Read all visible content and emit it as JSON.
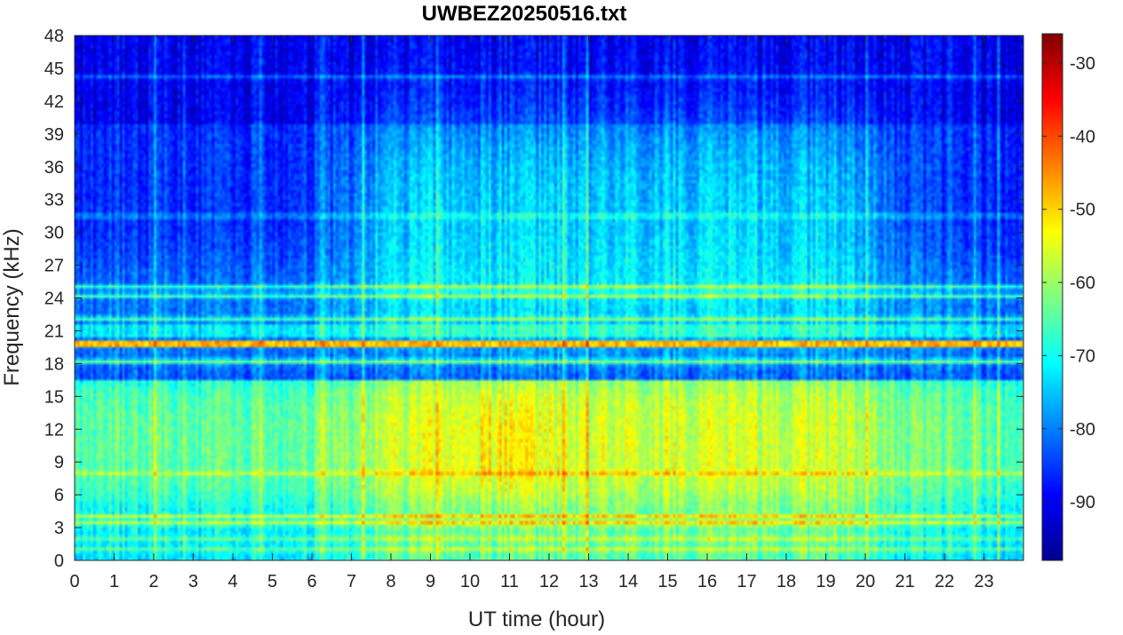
{
  "chart_data": {
    "type": "heatmap",
    "title": "UWBEZ20250516.txt",
    "xlabel": "UT time (hour)",
    "ylabel": "Frequency (kHz)",
    "xlim": [
      0,
      24
    ],
    "ylim": [
      0,
      48
    ],
    "x_ticks": [
      0,
      1,
      2,
      3,
      4,
      5,
      6,
      7,
      8,
      9,
      10,
      11,
      12,
      13,
      14,
      15,
      16,
      17,
      18,
      19,
      20,
      21,
      22,
      23
    ],
    "y_ticks": [
      0,
      3,
      6,
      9,
      12,
      15,
      18,
      21,
      24,
      27,
      30,
      33,
      36,
      39,
      42,
      45,
      48
    ],
    "colorbar": {
      "colormap": "jet",
      "clim": [
        -98,
        -26
      ],
      "ticks": [
        -30,
        -40,
        -50,
        -60,
        -70,
        -80,
        -90
      ]
    },
    "features": {
      "strong_lines_khz": [
        19.8,
        18.2
      ],
      "moderate_lines_khz": [
        25.0,
        24.2,
        22.1,
        21.3,
        20.7,
        4.0,
        3.4
      ],
      "weak_lines_khz": [
        44.2,
        31.5,
        8.0,
        2.0,
        1.0
      ],
      "daytime_broadband_hours": [
        7,
        20.5
      ],
      "peak_broadband_hours": [
        10,
        11.5
      ],
      "peak_broadband_khz": [
        6,
        15
      ]
    }
  }
}
